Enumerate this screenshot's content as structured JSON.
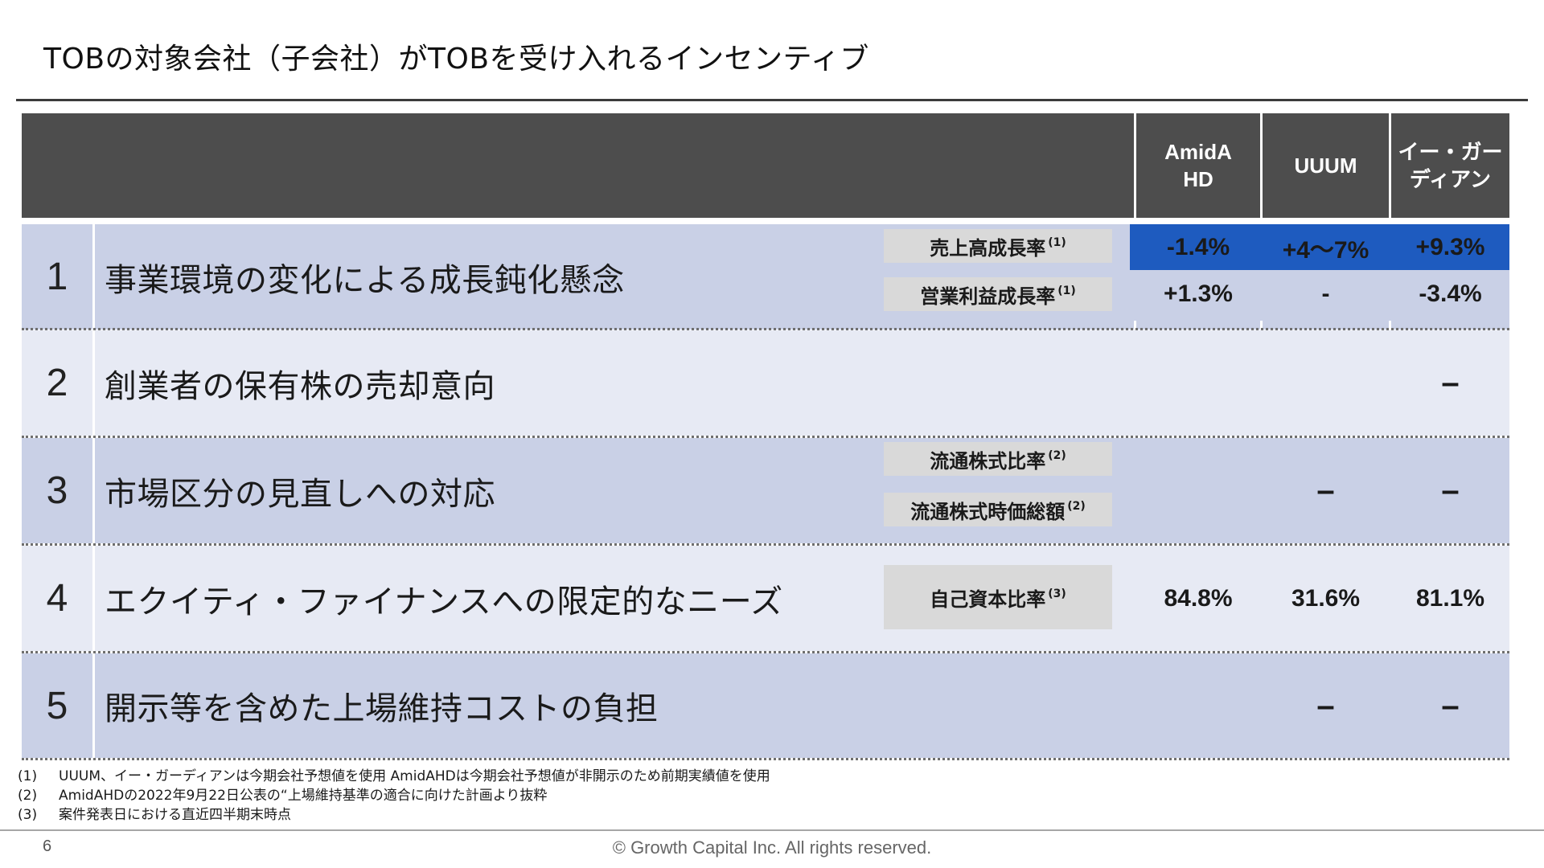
{
  "title": "TOBの対象会社（子会社）がTOBを受け入れるインセンティブ",
  "columns": [
    "AmidA\nHD",
    "UUUM",
    "イー・ガー\nディアン"
  ],
  "rows": [
    {
      "num": "1",
      "text": "事業環境の変化による成長鈍化懸念",
      "labels": [
        {
          "text": "売上高成長率",
          "note": "(1)"
        },
        {
          "text": "営業利益成長率",
          "note": "(1)"
        }
      ],
      "values": [
        [
          "-1.4%",
          "+4～7%",
          "+9.3%"
        ],
        [
          "+1.3%",
          "-",
          "-3.4%"
        ]
      ]
    },
    {
      "num": "2",
      "text": "創業者の保有株の売却意向",
      "marks": [
        "",
        "",
        "–"
      ]
    },
    {
      "num": "3",
      "text": "市場区分の見直しへの対応",
      "labels": [
        {
          "text": "流通株式比率",
          "note": "(2)"
        },
        {
          "text": "流通株式時価総額",
          "note": "(2)"
        }
      ],
      "marks": [
        "",
        "–",
        "–"
      ]
    },
    {
      "num": "4",
      "text": "エクイティ・ファイナンスへの限定的なニーズ",
      "labels": [
        {
          "text": "自己資本比率",
          "note": "(3)"
        }
      ],
      "values": [
        [
          "84.8%",
          "31.6%",
          "81.1%"
        ]
      ]
    },
    {
      "num": "5",
      "text": "開示等を含めた上場維持コストの負担",
      "marks": [
        "",
        "–",
        "–"
      ]
    }
  ],
  "footnotes": [
    {
      "mark": "(1)",
      "text": "UUUM、イー・ガーディアンは今期会社予想値を使用 AmidAHDは今期会社予想値が非開示のため前期実績値を使用"
    },
    {
      "mark": "(2)",
      "text": "AmidAHDの2022年9月22日公表の“上場維持基準の適合に向けた計画より抜粋"
    },
    {
      "mark": "(3)",
      "text": "案件発表日における直近四半期末時点"
    }
  ],
  "page_number": "6",
  "copyright": "© Growth Capital Inc. All rights reserved.",
  "colors": {
    "header_bg": "#4d4d4d",
    "row_dark": "#c9d0e6",
    "row_light": "#e7eaf4",
    "label_bg": "#d9d9d9",
    "highlight": "#1e5bbf"
  }
}
